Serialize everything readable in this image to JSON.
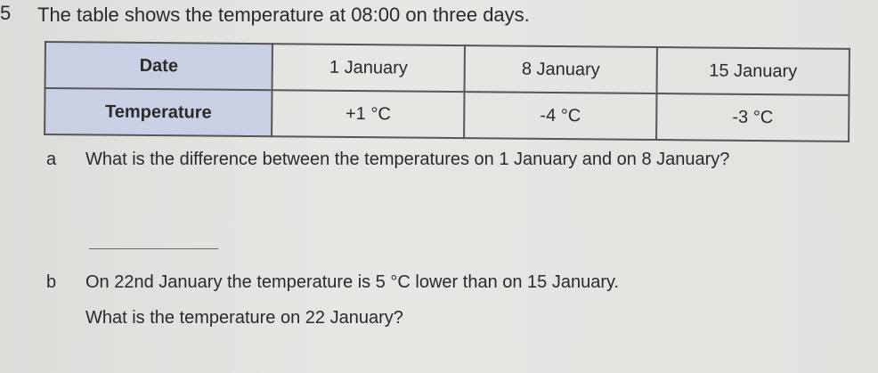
{
  "question_number": "5",
  "intro": "The table shows the temperature at 08:00 on three days.",
  "table": {
    "rows": [
      {
        "label": "Date",
        "values": [
          "1 January",
          "8 January",
          "15 January"
        ]
      },
      {
        "label": "Temperature",
        "values": [
          "+1 °C",
          "-4 °C",
          "-3 °C"
        ]
      }
    ]
  },
  "part_a": {
    "letter": "a",
    "text": "What is the difference between the temperatures on 1 January and on 8 January?"
  },
  "part_b": {
    "letter": "b",
    "text": "On 22nd January the temperature is 5 °C lower than on 15 January.",
    "text2": "What is the temperature on 22 January?"
  }
}
